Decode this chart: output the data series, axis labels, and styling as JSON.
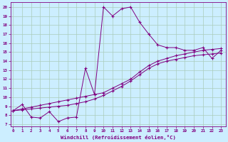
{
  "xlabel": "Windchill (Refroidissement éolien,°C)",
  "bg_color": "#cceeff",
  "line_color": "#800080",
  "grid_color": "#aaccbb",
  "xlim": [
    -0.3,
    23.5
  ],
  "ylim": [
    6.8,
    20.5
  ],
  "xticks": [
    0,
    1,
    2,
    3,
    4,
    5,
    6,
    7,
    8,
    9,
    10,
    11,
    12,
    13,
    14,
    15,
    16,
    17,
    18,
    19,
    20,
    21,
    22,
    23
  ],
  "yticks": [
    7,
    8,
    9,
    10,
    11,
    12,
    13,
    14,
    15,
    16,
    17,
    18,
    19,
    20
  ],
  "line1_x": [
    0,
    1,
    2,
    3,
    4,
    5,
    6,
    7,
    8,
    9,
    10,
    11,
    12,
    13,
    14,
    15,
    16,
    17,
    18,
    19,
    20,
    21,
    22,
    23
  ],
  "line1_y": [
    8.5,
    9.2,
    7.8,
    7.7,
    8.4,
    7.3,
    7.7,
    7.8,
    13.2,
    10.3,
    20.0,
    19.0,
    19.8,
    20.0,
    18.3,
    17.0,
    15.8,
    15.5,
    15.5,
    15.2,
    15.2,
    15.5,
    14.3,
    15.2
  ],
  "line2_x": [
    0,
    1,
    2,
    3,
    4,
    5,
    6,
    7,
    8,
    9,
    10,
    11,
    12,
    13,
    14,
    15,
    16,
    17,
    18,
    19,
    20,
    21,
    22,
    23
  ],
  "line2_y": [
    8.5,
    8.7,
    8.9,
    9.1,
    9.3,
    9.5,
    9.7,
    9.9,
    10.1,
    10.3,
    10.5,
    11.0,
    11.5,
    12.0,
    12.8,
    13.5,
    14.0,
    14.3,
    14.6,
    14.8,
    15.0,
    15.2,
    15.3,
    15.4
  ],
  "line3_x": [
    0,
    1,
    2,
    3,
    4,
    5,
    6,
    7,
    8,
    9,
    10,
    11,
    12,
    13,
    14,
    15,
    16,
    17,
    18,
    19,
    20,
    21,
    22,
    23
  ],
  "line3_y": [
    8.5,
    8.6,
    8.7,
    8.8,
    8.9,
    9.0,
    9.1,
    9.3,
    9.5,
    9.8,
    10.2,
    10.7,
    11.2,
    11.8,
    12.5,
    13.2,
    13.7,
    14.0,
    14.2,
    14.4,
    14.6,
    14.7,
    14.8,
    14.9
  ]
}
